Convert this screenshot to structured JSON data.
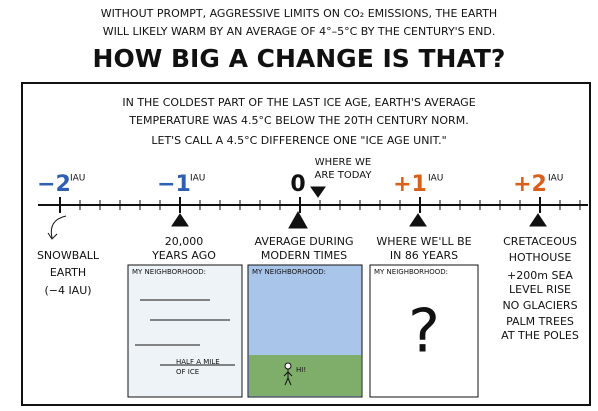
{
  "header": {
    "lines": [
      "WITHOUT PROMPT, AGGRESSIVE LIMITS ON CO₂ EMISSIONS, THE EARTH",
      "WILL LIKELY WARM BY AN AVERAGE OF 4°–5°C BY THE CENTURY'S END."
    ],
    "title": "HOW BIG A CHANGE IS THAT?"
  },
  "intro": {
    "lines": [
      "IN THE COLDEST PART OF THE LAST ICE AGE, EARTH'S AVERAGE",
      "TEMPERATURE WAS 4.5°C BELOW THE 20TH CENTURY NORM.",
      "LET'S CALL A 4.5°C DIFFERENCE ONE \"ICE AGE UNIT.\""
    ]
  },
  "timeline": {
    "markers": [
      {
        "value": "−2",
        "unit": "IAU"
      },
      {
        "value": "−1",
        "unit": "IAU"
      },
      {
        "value": "0"
      },
      {
        "value": "+1",
        "unit": "IAU"
      },
      {
        "value": "+2",
        "unit": "IAU"
      }
    ],
    "today": [
      "WHERE WE",
      "ARE TODAY"
    ]
  },
  "snowball": [
    "SNOWBALL",
    "EARTH",
    "(−4 IAU)"
  ],
  "panels": [
    {
      "caption": [
        "20,000",
        "YEARS AGO"
      ],
      "label": "MY NEIGHBORHOOD:",
      "note": [
        "HALF A MILE",
        "OF ICE"
      ]
    },
    {
      "caption": [
        "AVERAGE DURING",
        "MODERN TIMES"
      ],
      "label": "MY NEIGHBORHOOD:",
      "note": [
        "HI!"
      ]
    },
    {
      "caption": [
        "WHERE WE'LL BE",
        "IN 86 YEARS"
      ],
      "label": "MY NEIGHBORHOOD:",
      "note": [
        "?"
      ]
    }
  ],
  "cretaceous": {
    "caption": [
      "CRETACEOUS",
      "HOTHOUSE"
    ],
    "notes": [
      "+200m SEA",
      "LEVEL RISE",
      "NO GLACIERS",
      "PALM TREES",
      "AT THE POLES"
    ]
  }
}
